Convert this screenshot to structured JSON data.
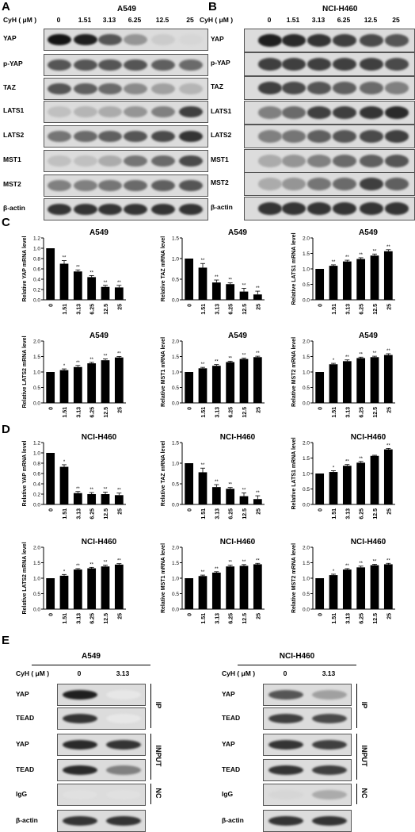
{
  "panels": {
    "A": "A",
    "B": "B",
    "C": "C",
    "D": "D",
    "E": "E"
  },
  "conc_label": "CyH ( μM )",
  "concentrations": [
    "0",
    "1.51",
    "3.13",
    "6.25",
    "12.5",
    "25"
  ],
  "blotA": {
    "title": "A549",
    "rows": [
      {
        "label": "YAP",
        "intensity": [
          1,
          0.95,
          0.7,
          0.4,
          0.15,
          0.1
        ]
      },
      {
        "label": "p-YAP",
        "intensity": [
          0.7,
          0.7,
          0.7,
          0.7,
          0.65,
          0.6
        ]
      },
      {
        "label": "TAZ",
        "intensity": [
          0.7,
          0.65,
          0.6,
          0.45,
          0.35,
          0.25
        ]
      },
      {
        "label": "LATS1",
        "intensity": [
          0.2,
          0.25,
          0.3,
          0.4,
          0.5,
          0.8
        ]
      },
      {
        "label": "LATS2",
        "intensity": [
          0.55,
          0.6,
          0.65,
          0.7,
          0.75,
          0.85
        ]
      },
      {
        "label": "MST1",
        "intensity": [
          0.2,
          0.2,
          0.3,
          0.55,
          0.6,
          0.75
        ]
      },
      {
        "label": "MST2",
        "intensity": [
          0.5,
          0.5,
          0.55,
          0.6,
          0.65,
          0.7
        ]
      },
      {
        "label": "β-actin",
        "intensity": [
          0.85,
          0.85,
          0.85,
          0.85,
          0.85,
          0.85
        ]
      }
    ]
  },
  "blotB": {
    "title": "NCI-H460",
    "rows": [
      {
        "label": "YAP",
        "intensity": [
          0.95,
          0.9,
          0.85,
          0.8,
          0.75,
          0.7
        ]
      },
      {
        "label": "p-YAP",
        "intensity": [
          0.8,
          0.8,
          0.8,
          0.8,
          0.8,
          0.75
        ]
      },
      {
        "label": "TAZ",
        "intensity": [
          0.8,
          0.75,
          0.7,
          0.65,
          0.6,
          0.5
        ]
      },
      {
        "label": "LATS1",
        "intensity": [
          0.5,
          0.6,
          0.8,
          0.8,
          0.85,
          0.9
        ]
      },
      {
        "label": "LATS2",
        "intensity": [
          0.5,
          0.55,
          0.65,
          0.7,
          0.75,
          0.8
        ]
      },
      {
        "label": "MST1",
        "intensity": [
          0.3,
          0.4,
          0.5,
          0.6,
          0.65,
          0.7
        ]
      },
      {
        "label": "MST2",
        "intensity": [
          0.3,
          0.4,
          0.55,
          0.6,
          0.8,
          0.65
        ]
      },
      {
        "label": "β-actin",
        "intensity": [
          0.85,
          0.85,
          0.85,
          0.85,
          0.85,
          0.85
        ]
      }
    ]
  },
  "chart_data": [
    {
      "type": "bar",
      "title": "A549",
      "ylabel": "Relative YAP mRNA level",
      "categories": [
        "0",
        "1.51",
        "3.13",
        "6.25",
        "12.5",
        "25"
      ],
      "values": [
        1.0,
        0.7,
        0.55,
        0.44,
        0.25,
        0.24
      ],
      "errors": [
        0,
        0.06,
        0.03,
        0.03,
        0.03,
        0.04
      ],
      "sig": [
        "",
        "**",
        "**",
        "**",
        "**",
        "**"
      ],
      "ylim": [
        0,
        1.2
      ],
      "yticks": [
        "0.0",
        "0.2",
        "0.4",
        "0.6",
        "0.8",
        "1.0",
        "1.2"
      ]
    },
    {
      "type": "bar",
      "title": "A549",
      "ylabel": "Relative TAZ mRNA level",
      "categories": [
        "0",
        "1.51",
        "3.13",
        "6.25",
        "12.5",
        "25"
      ],
      "values": [
        1.0,
        0.78,
        0.42,
        0.38,
        0.2,
        0.13
      ],
      "errors": [
        0,
        0.1,
        0.06,
        0.03,
        0.08,
        0.08
      ],
      "sig": [
        "",
        "**",
        "**",
        "**",
        "**",
        "**"
      ],
      "ylim": [
        0,
        1.5
      ],
      "yticks": [
        "0.0",
        "0.5",
        "1.0",
        "1.5"
      ]
    },
    {
      "type": "bar",
      "title": "A549",
      "ylabel": "Relative LATS1 mRNA level",
      "categories": [
        "0",
        "1.51",
        "3.13",
        "6.25",
        "12.5",
        "25"
      ],
      "values": [
        1.0,
        1.1,
        1.24,
        1.32,
        1.43,
        1.57
      ],
      "errors": [
        0,
        0.03,
        0.04,
        0.04,
        0.05,
        0.05
      ],
      "sig": [
        "",
        "**",
        "**",
        "**",
        "**",
        "**"
      ],
      "ylim": [
        0,
        2.0
      ],
      "yticks": [
        "0.0",
        "0.5",
        "1.0",
        "1.5",
        "2.0"
      ]
    },
    {
      "type": "bar",
      "title": "A549",
      "ylabel": "Relative LATS2 mRNA level",
      "categories": [
        "0",
        "1.51",
        "3.13",
        "6.25",
        "12.5",
        "25"
      ],
      "values": [
        1.0,
        1.06,
        1.16,
        1.28,
        1.38,
        1.47
      ],
      "errors": [
        0,
        0.04,
        0.05,
        0.03,
        0.04,
        0.03
      ],
      "sig": [
        "",
        "*",
        "**",
        "**",
        "**",
        "**"
      ],
      "ylim": [
        0,
        2.0
      ],
      "yticks": [
        "0.0",
        "0.5",
        "1.0",
        "1.5",
        "2.0"
      ]
    },
    {
      "type": "bar",
      "title": "A549",
      "ylabel": "Relative MST1 mRNA level",
      "categories": [
        "0",
        "1.51",
        "3.13",
        "6.25",
        "12.5",
        "25"
      ],
      "values": [
        1.0,
        1.12,
        1.2,
        1.32,
        1.42,
        1.48
      ],
      "errors": [
        0,
        0.03,
        0.04,
        0.03,
        0.03,
        0.03
      ],
      "sig": [
        "",
        "**",
        "**",
        "**",
        "**",
        "**"
      ],
      "ylim": [
        0,
        2.0
      ],
      "yticks": [
        "0.0",
        "0.5",
        "1.0",
        "1.5",
        "2.0"
      ]
    },
    {
      "type": "bar",
      "title": "A549",
      "ylabel": "Relative MST2 mRNA level",
      "categories": [
        "0",
        "1.51",
        "3.13",
        "6.25",
        "12.5",
        "25"
      ],
      "values": [
        1.0,
        1.25,
        1.35,
        1.45,
        1.48,
        1.55
      ],
      "errors": [
        0,
        0.03,
        0.04,
        0.03,
        0.03,
        0.04
      ],
      "sig": [
        "",
        "*",
        "**",
        "**",
        "**",
        "**"
      ],
      "ylim": [
        0,
        2.0
      ],
      "yticks": [
        "0.0",
        "0.5",
        "1.0",
        "1.5",
        "2.0"
      ]
    },
    {
      "type": "bar",
      "title": "NCI-H460",
      "ylabel": "Relative YAP mRNA level",
      "categories": [
        "0",
        "1.51",
        "3.13",
        "6.25",
        "12.5",
        "25"
      ],
      "values": [
        1.0,
        0.73,
        0.22,
        0.2,
        0.2,
        0.18
      ],
      "errors": [
        0,
        0.04,
        0.03,
        0.03,
        0.04,
        0.04
      ],
      "sig": [
        "",
        "*",
        "**",
        "**",
        "**",
        "**"
      ],
      "ylim": [
        0,
        1.2
      ],
      "yticks": [
        "0.0",
        "0.2",
        "0.4",
        "0.6",
        "0.8",
        "1.0",
        "1.2"
      ]
    },
    {
      "type": "bar",
      "title": "NCI-H460",
      "ylabel": "Relative TAZ mRNA level",
      "categories": [
        "0",
        "1.51",
        "3.13",
        "6.25",
        "12.5",
        "25"
      ],
      "values": [
        1.0,
        0.78,
        0.42,
        0.38,
        0.2,
        0.13
      ],
      "errors": [
        0,
        0.1,
        0.06,
        0.03,
        0.08,
        0.08
      ],
      "sig": [
        "",
        "**",
        "**",
        "**",
        "**",
        "**"
      ],
      "ylim": [
        0,
        1.5
      ],
      "yticks": [
        "0.0",
        "0.5",
        "1.0",
        "1.5"
      ]
    },
    {
      "type": "bar",
      "title": "NCI-H460",
      "ylabel": "Relative LATS1 mRNA level",
      "categories": [
        "0",
        "1.51",
        "3.13",
        "6.25",
        "12.5",
        "25"
      ],
      "values": [
        1.0,
        1.05,
        1.25,
        1.35,
        1.57,
        1.78
      ],
      "errors": [
        0,
        0.04,
        0.04,
        0.04,
        0.02,
        0.03
      ],
      "sig": [
        "",
        "*",
        "**",
        "**",
        "",
        "**"
      ],
      "ylim": [
        0,
        2.0
      ],
      "yticks": [
        "0.0",
        "0.5",
        "1.0",
        "1.5",
        "2.0"
      ]
    },
    {
      "type": "bar",
      "title": "NCI-H460",
      "ylabel": "Relative LATS2 mRNA level",
      "categories": [
        "0",
        "1.51",
        "3.13",
        "6.25",
        "12.5",
        "25"
      ],
      "values": [
        1.0,
        1.08,
        1.28,
        1.32,
        1.38,
        1.44
      ],
      "errors": [
        0,
        0.04,
        0.03,
        0.03,
        0.04,
        0.03
      ],
      "sig": [
        "",
        "*",
        "**",
        "**",
        "**",
        "**"
      ],
      "ylim": [
        0,
        2.0
      ],
      "yticks": [
        "0.0",
        "0.5",
        "1.0",
        "1.5",
        "2.0"
      ]
    },
    {
      "type": "bar",
      "title": "NCI-H460",
      "ylabel": "Relative MST1 mRNA level",
      "categories": [
        "0",
        "1.51",
        "3.13",
        "6.25",
        "12.5",
        "25"
      ],
      "values": [
        1.0,
        1.07,
        1.18,
        1.38,
        1.4,
        1.45
      ],
      "errors": [
        0,
        0.03,
        0.03,
        0.04,
        0.04,
        0.03
      ],
      "sig": [
        "",
        "**",
        "**",
        "**",
        "**",
        "**"
      ],
      "ylim": [
        0,
        2.0
      ],
      "yticks": [
        "0.0",
        "0.5",
        "1.0",
        "1.5",
        "2.0"
      ]
    },
    {
      "type": "bar",
      "title": "NCI-H460",
      "ylabel": "Relative MST2 mRNA level",
      "categories": [
        "0",
        "1.51",
        "3.13",
        "6.25",
        "12.5",
        "25"
      ],
      "values": [
        1.0,
        1.1,
        1.28,
        1.35,
        1.42,
        1.45
      ],
      "errors": [
        0,
        0.03,
        0.03,
        0.04,
        0.03,
        0.03
      ],
      "sig": [
        "",
        "*",
        "**",
        "**",
        "**",
        "**"
      ],
      "ylim": [
        0,
        2.0
      ],
      "yticks": [
        "0.0",
        "0.5",
        "1.0",
        "1.5",
        "2.0"
      ]
    }
  ],
  "panelE": {
    "left_title": "A549",
    "right_title": "NCI-H460",
    "conc_label": "CyH ( μM )",
    "lanes": [
      "0",
      "3.13"
    ],
    "rows": [
      "YAP",
      "TEAD",
      "YAP",
      "TEAD",
      "IgG",
      "β-actin"
    ],
    "groups": [
      "IP",
      "INPUT",
      "NC"
    ],
    "left_int": [
      [
        0.95,
        0.02
      ],
      [
        0.85,
        0.02
      ],
      [
        0.9,
        0.85
      ],
      [
        0.9,
        0.5
      ],
      [
        0.05,
        0.05
      ],
      [
        0.85,
        0.85
      ]
    ],
    "right_int": [
      [
        0.7,
        0.35
      ],
      [
        0.8,
        0.75
      ],
      [
        0.85,
        0.8
      ],
      [
        0.85,
        0.8
      ],
      [
        0.1,
        0.3
      ],
      [
        0.85,
        0.85
      ]
    ]
  }
}
